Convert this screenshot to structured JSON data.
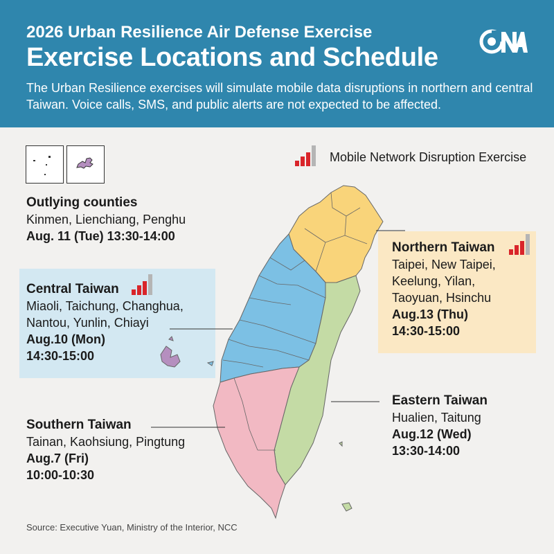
{
  "header": {
    "subtitle": "2026 Urban Resilience Air Defense Exercise",
    "title": "Exercise Locations and Schedule",
    "description": "The Urban Resilience exercises will simulate mobile data disruptions in northern and central Taiwan. Voice calls, SMS, and public alerts are not expected to be affected.",
    "logo_text": "CNA"
  },
  "legend": {
    "label": "Mobile Network Disruption Exercise",
    "icon": "signal-bars-icon"
  },
  "regions": {
    "outlying": {
      "name": "Outlying counties",
      "areas": "Kinmen, Lienchiang, Penghu",
      "date": "Aug. 11 (Tue) 13:30-14:00",
      "mobile_disruption": false
    },
    "central": {
      "name": "Central Taiwan",
      "areas_line1": "Miaoli, Taichung, Changhua,",
      "areas_line2": "Nantou, Yunlin, Chiayi",
      "date": "Aug.10 (Mon)",
      "time": "14:30-15:00",
      "mobile_disruption": true
    },
    "northern": {
      "name": "Northern Taiwan",
      "areas_line1": "Taipei, New Taipei,",
      "areas_line2": "Keelung, Yilan,",
      "areas_line3": "Taoyuan, Hsinchu",
      "date": "Aug.13 (Thu)",
      "time": "14:30-15:00",
      "mobile_disruption": true
    },
    "eastern": {
      "name": "Eastern Taiwan",
      "areas": "Hualien, Taitung",
      "date": "Aug.12 (Wed)",
      "time": "13:30-14:00",
      "mobile_disruption": false
    },
    "southern": {
      "name": "Southern Taiwan",
      "areas": "Tainan, Kaohsiung, Pingtung",
      "date": "Aug.7 (Fri)",
      "time": "10:00-10:30",
      "mobile_disruption": false
    }
  },
  "colors": {
    "header_bg": "#2f86ad",
    "northern": "#f9d47a",
    "central": "#7cc0e4",
    "eastern": "#c4dba5",
    "southern": "#f2b9c3",
    "outlying": "#b58fbf",
    "signal_red": "#d9252a",
    "signal_gray": "#b5b5b5",
    "central_box": "#d3e8f2",
    "northern_box": "#fbe8c4"
  },
  "source": "Source: Executive Yuan, Ministry of the Interior, NCC"
}
